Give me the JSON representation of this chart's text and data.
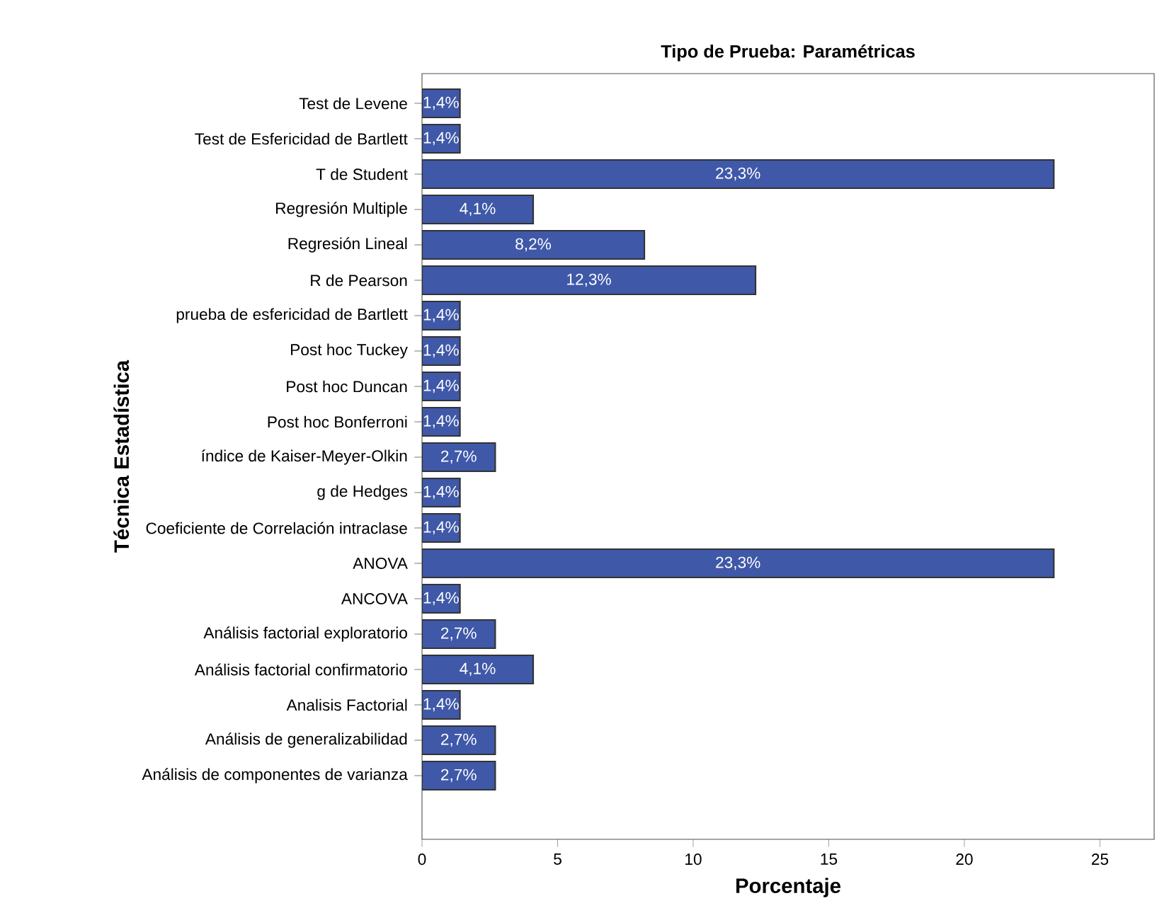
{
  "chart_data": {
    "type": "bar",
    "orientation": "horizontal",
    "title": "Tipo de Prueba: Paramétricas",
    "xlabel": "Porcentaje",
    "ylabel": "Técnica Estadística",
    "categories": [
      "Test de Levene",
      "Test de Esfericidad de Bartlett",
      "T de Student",
      "Regresión Multiple",
      "Regresión Lineal",
      "R de Pearson",
      "prueba de esfericidad de Bartlett",
      "Post hoc Tuckey",
      "Post hoc Duncan",
      "Post hoc Bonferroni",
      "índice de Kaiser-Meyer-Olkin",
      "g de Hedges",
      "Coeficiente de Correlación intraclase",
      "ANOVA",
      "ANCOVA",
      "Análisis factorial exploratorio",
      "Análisis factorial confirmatorio",
      "Analisis Factorial",
      "Análisis de generalizabilidad",
      "Análisis de componentes de varianza"
    ],
    "values": [
      1.4,
      1.4,
      23.3,
      4.1,
      8.2,
      12.3,
      1.4,
      1.4,
      1.4,
      1.4,
      2.7,
      1.4,
      1.4,
      23.3,
      1.4,
      2.7,
      4.1,
      1.4,
      2.7,
      2.7
    ],
    "value_labels": [
      "1,4%",
      "1,4%",
      "23,3%",
      "4,1%",
      "8,2%",
      "12,3%",
      "1,4%",
      "1,4%",
      "1,4%",
      "1,4%",
      "2,7%",
      "1,4%",
      "1,4%",
      "23,3%",
      "1,4%",
      "2,7%",
      "4,1%",
      "1,4%",
      "2,7%",
      "2,7%"
    ],
    "color": "#3f58a8",
    "xlim": [
      0,
      27
    ],
    "xticks": [
      0,
      5,
      10,
      15,
      20,
      25
    ]
  }
}
